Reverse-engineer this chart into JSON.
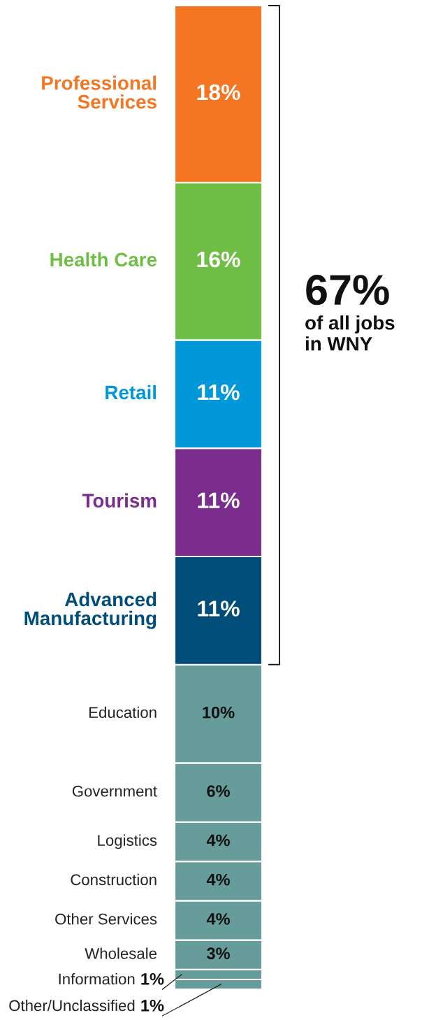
{
  "chart_data": {
    "type": "bar",
    "stacked": true,
    "categories": [
      null
    ],
    "ylim": [
      0,
      100
    ],
    "tick_labels": false,
    "series": [
      {
        "name": "Other/Unclassified",
        "color": "#669c9a",
        "values": [
          1
        ],
        "value_labels": [
          "1%"
        ]
      },
      {
        "name": "Information",
        "color": "#669c9a",
        "values": [
          1
        ],
        "value_labels": [
          "1%"
        ]
      },
      {
        "name": "Wholesale",
        "color": "#669c9a",
        "values": [
          3
        ],
        "value_labels": [
          "3%"
        ]
      },
      {
        "name": "Other Services",
        "color": "#669c9a",
        "values": [
          4
        ],
        "value_labels": [
          "4%"
        ]
      },
      {
        "name": "Construction",
        "color": "#669c9a",
        "values": [
          4
        ],
        "value_labels": [
          "4%"
        ]
      },
      {
        "name": "Logistics",
        "color": "#669c9a",
        "values": [
          4
        ],
        "value_labels": [
          "4%"
        ]
      },
      {
        "name": "Government",
        "color": "#669c9a",
        "values": [
          6
        ],
        "value_labels": [
          "6%"
        ]
      },
      {
        "name": "Education",
        "color": "#669c9a",
        "values": [
          10
        ],
        "value_labels": [
          "10%"
        ]
      },
      {
        "name": "Advanced Manufacturing",
        "color": "#004d7a",
        "values": [
          11
        ],
        "value_labels": [
          "11%"
        ]
      },
      {
        "name": "Tourism",
        "color": "#7b2d8e",
        "values": [
          11
        ],
        "value_labels": [
          "11%"
        ]
      },
      {
        "name": "Retail",
        "color": "#0098d8",
        "values": [
          11
        ],
        "value_labels": [
          "11%"
        ]
      },
      {
        "name": "Health Care",
        "color": "#6fbe46",
        "values": [
          16
        ],
        "value_labels": [
          "16%"
        ]
      },
      {
        "name": "Professional Services",
        "color": "#f47622",
        "values": [
          18
        ],
        "value_labels": [
          "18%"
        ]
      }
    ],
    "annotations": [
      "67%",
      "of all jobs in WNY"
    ]
  }
}
